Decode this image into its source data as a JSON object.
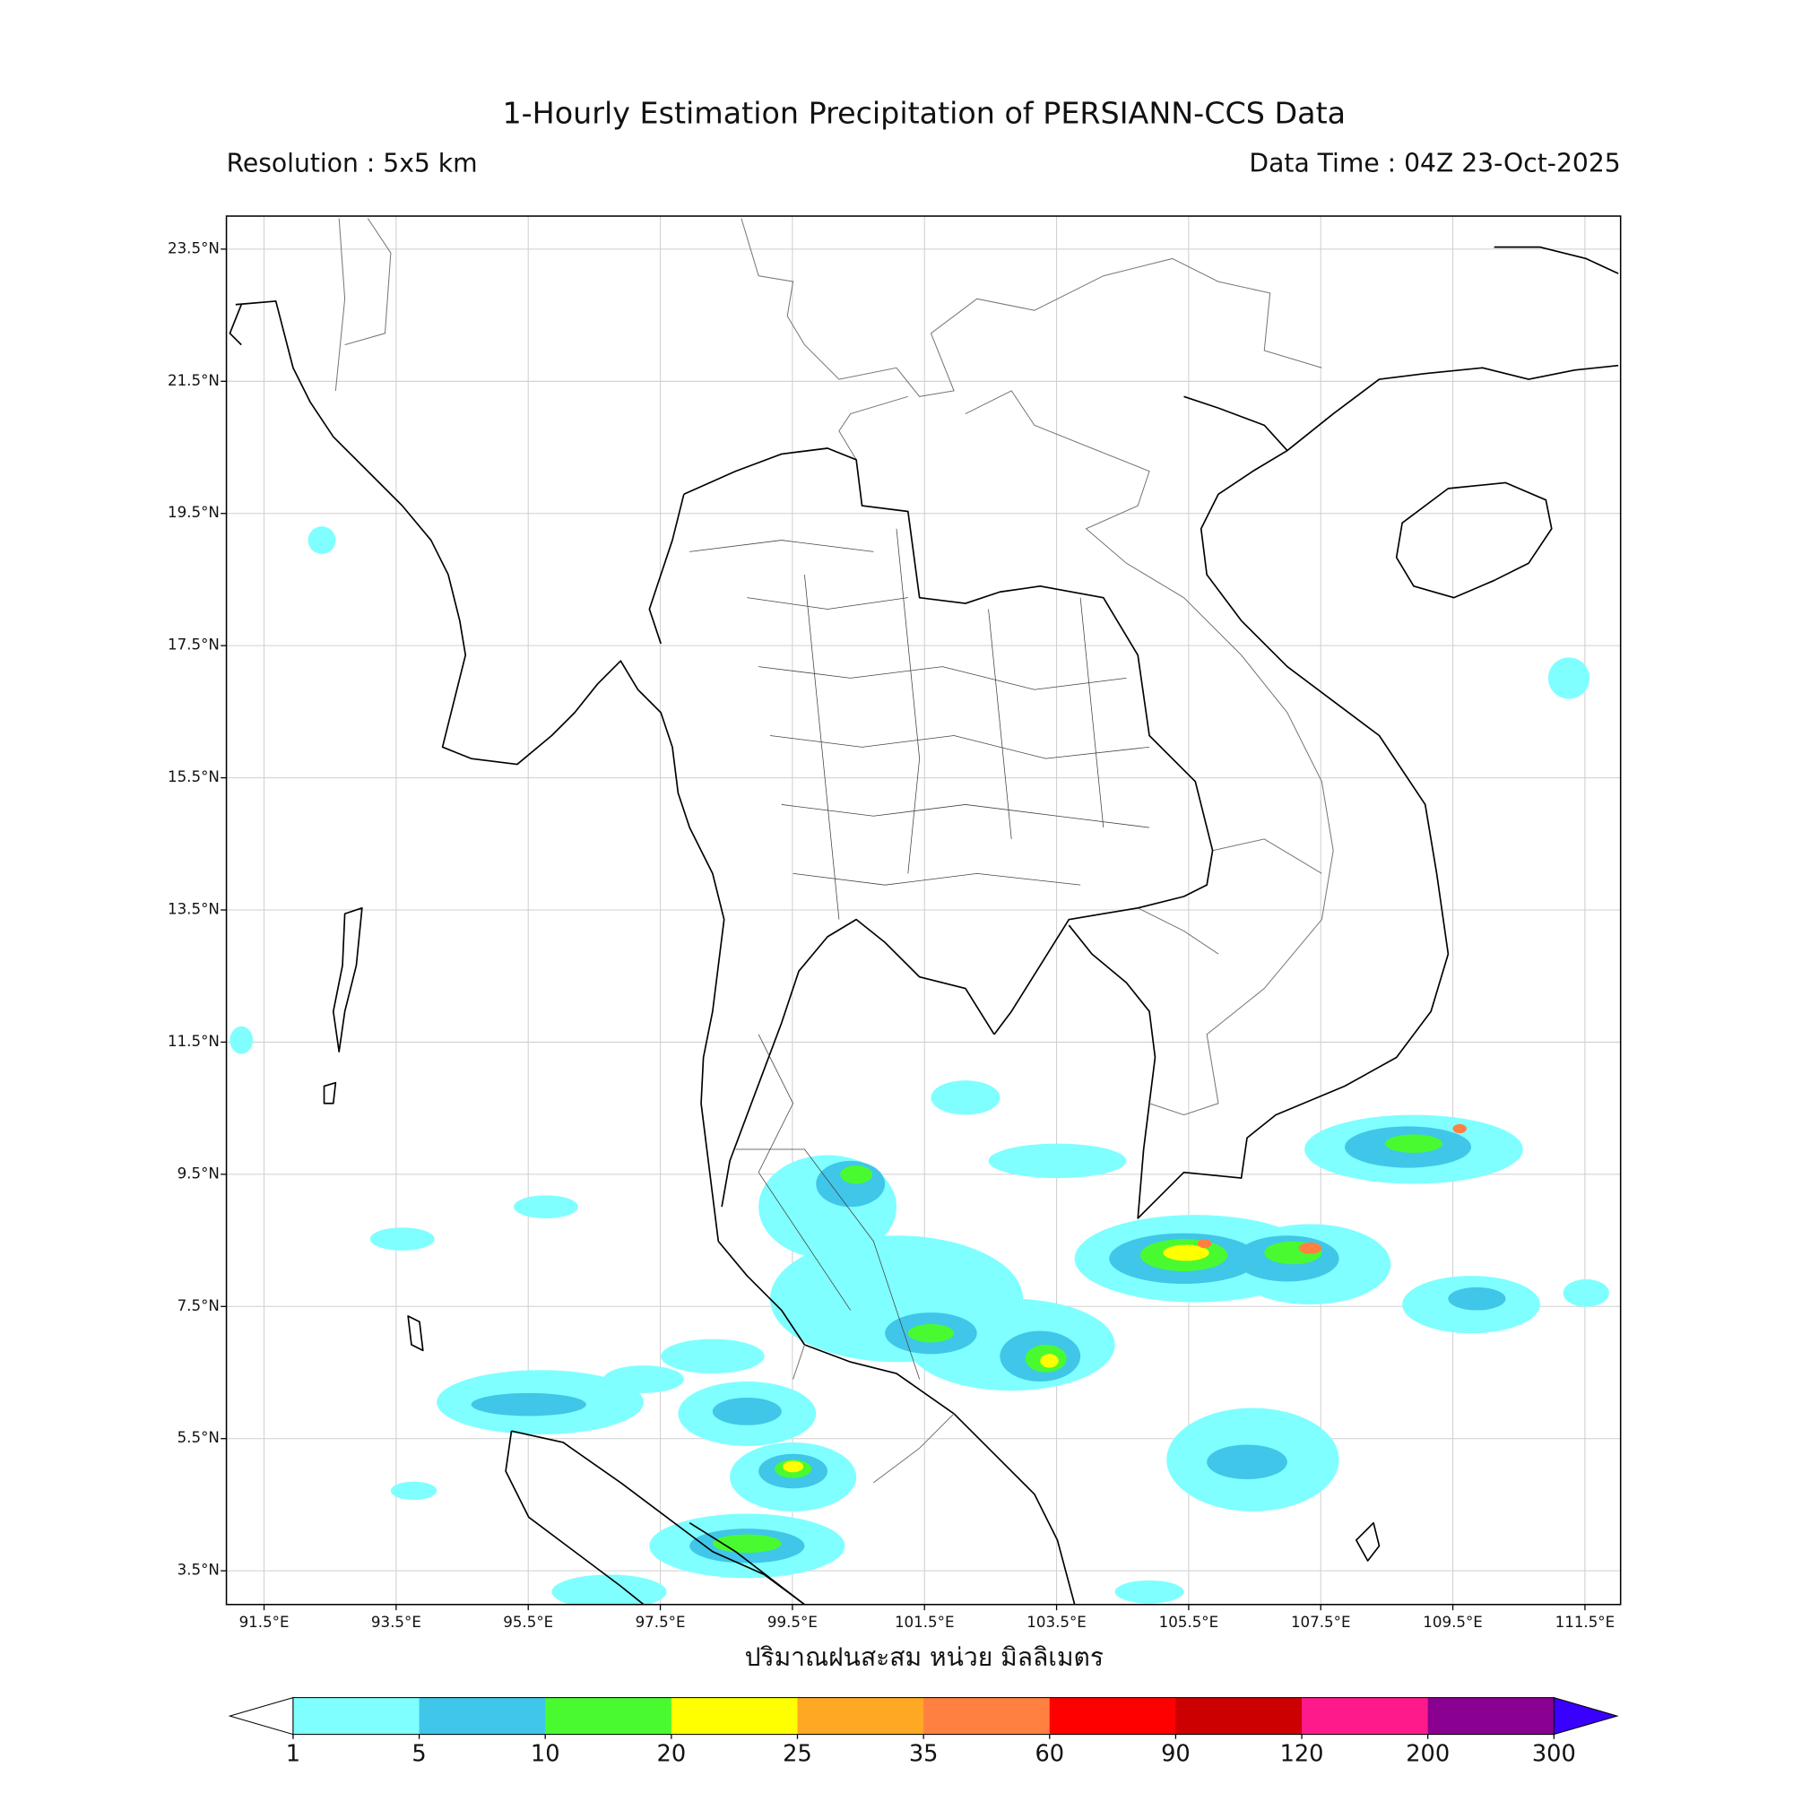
{
  "title": "1-Hourly Estimation Precipitation of PERSIANN-CCS Data",
  "subtitle_left": "Resolution : 5x5 km",
  "subtitle_right": "Data Time : 04Z 23-Oct-2025",
  "map": {
    "lon_range": [
      90.93,
      112.04
    ],
    "lat_range": [
      2.99,
      24.0
    ],
    "lon_ticks": [
      {
        "value": 91.5,
        "label": "91.5°E"
      },
      {
        "value": 93.5,
        "label": "93.5°E"
      },
      {
        "value": 95.5,
        "label": "95.5°E"
      },
      {
        "value": 97.5,
        "label": "97.5°E"
      },
      {
        "value": 99.5,
        "label": "99.5°E"
      },
      {
        "value": 101.5,
        "label": "101.5°E"
      },
      {
        "value": 103.5,
        "label": "103.5°E"
      },
      {
        "value": 105.5,
        "label": "105.5°E"
      },
      {
        "value": 107.5,
        "label": "107.5°E"
      },
      {
        "value": 109.5,
        "label": "109.5°E"
      },
      {
        "value": 111.5,
        "label": "111.5°E"
      }
    ],
    "lat_ticks": [
      {
        "value": 23.5,
        "label": "23.5°N"
      },
      {
        "value": 21.5,
        "label": "21.5°N"
      },
      {
        "value": 19.5,
        "label": "19.5°N"
      },
      {
        "value": 17.5,
        "label": "17.5°N"
      },
      {
        "value": 15.5,
        "label": "15.5°N"
      },
      {
        "value": 13.5,
        "label": "13.5°N"
      },
      {
        "value": 11.5,
        "label": "11.5°N"
      },
      {
        "value": 9.5,
        "label": "9.5°N"
      },
      {
        "value": 7.5,
        "label": "7.5°N"
      },
      {
        "value": 5.5,
        "label": "5.5°N"
      },
      {
        "value": 3.5,
        "label": "3.5°N"
      }
    ],
    "xlabel": "ปริมาณฝนสะสม หน่วย มิลลิเมตร"
  },
  "colorbar": {
    "levels": [
      1,
      5,
      10,
      20,
      25,
      35,
      60,
      90,
      120,
      200,
      300
    ],
    "colors": [
      "#7fffff",
      "#40c6e8",
      "#4afa30",
      "#ffff00",
      "#ffa824",
      "#ff8040",
      "#ff0000",
      "#cc0000",
      "#ff1a8c",
      "#8a0090"
    ],
    "under_color": "#ffffff",
    "over_color": "#3a00ff"
  }
}
